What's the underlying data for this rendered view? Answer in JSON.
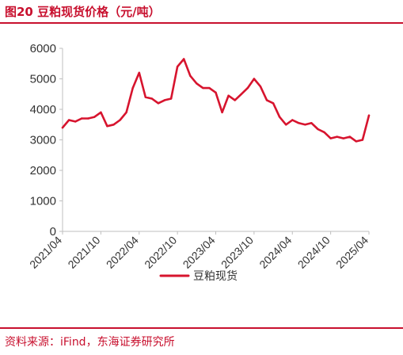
{
  "header": {
    "title": "图20  豆粕现货价格（元/吨）"
  },
  "footer": {
    "source": "资料来源：iFind，东海证券研究所"
  },
  "colors": {
    "accent": "#c8102e",
    "series": "#d7142e",
    "axis": "#bfbfbf",
    "text": "#333333"
  },
  "chart_data": {
    "type": "line",
    "title": "豆粕现货价格（元/吨）",
    "xlabel": "",
    "ylabel": "",
    "ylim": [
      0,
      6000
    ],
    "yticks": [
      "6000",
      "5000",
      "4000",
      "3000",
      "2000",
      "1000",
      "0"
    ],
    "xticks": [
      "2021/04",
      "2021/10",
      "2022/04",
      "2022/10",
      "2023/04",
      "2023/10",
      "2024/04",
      "2024/10",
      "2025/04"
    ],
    "grid": false,
    "legend": "bottom",
    "series": [
      {
        "name": "豆粕现货",
        "x": [
          "2021/04",
          "2021/05",
          "2021/06",
          "2021/07",
          "2021/08",
          "2021/09",
          "2021/10",
          "2021/11",
          "2021/12",
          "2022/01",
          "2022/02",
          "2022/03",
          "2022/04",
          "2022/05",
          "2022/06",
          "2022/07",
          "2022/08",
          "2022/09",
          "2022/10",
          "2022/11",
          "2022/12",
          "2023/01",
          "2023/02",
          "2023/03",
          "2023/04",
          "2023/05",
          "2023/06",
          "2023/07",
          "2023/08",
          "2023/09",
          "2023/10",
          "2023/11",
          "2023/12",
          "2024/01",
          "2024/02",
          "2024/03",
          "2024/04",
          "2024/05",
          "2024/06",
          "2024/07",
          "2024/08",
          "2024/09",
          "2024/10",
          "2024/11",
          "2024/12",
          "2025/01",
          "2025/02",
          "2025/03",
          "2025/04"
        ],
        "values": [
          3400,
          3650,
          3600,
          3700,
          3700,
          3750,
          3900,
          3450,
          3500,
          3650,
          3900,
          4700,
          5200,
          4400,
          4350,
          4200,
          4300,
          4350,
          5400,
          5650,
          5100,
          4850,
          4700,
          4700,
          4550,
          3900,
          4450,
          4300,
          4500,
          4700,
          5000,
          4750,
          4300,
          4200,
          3750,
          3500,
          3650,
          3550,
          3500,
          3550,
          3350,
          3250,
          3050,
          3100,
          3050,
          3100,
          2950,
          3000,
          3800
        ]
      }
    ]
  }
}
